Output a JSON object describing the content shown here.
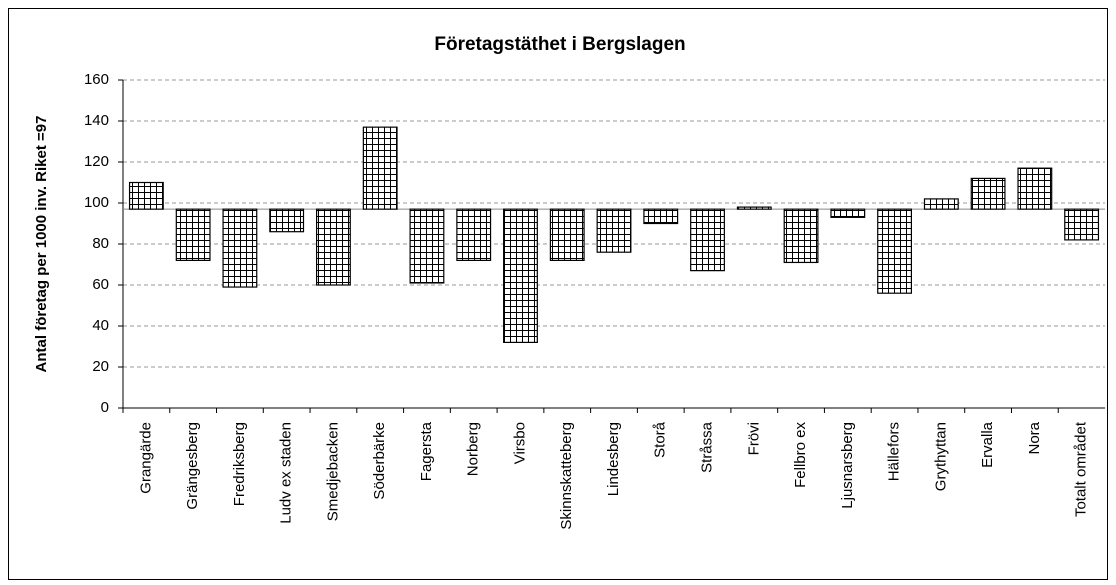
{
  "chart_data": {
    "type": "bar",
    "title": "Företagstäthet i Bergslagen",
    "y_label": "Antal företag per 1000 inv. Riket =97",
    "baseline": 97,
    "categories": [
      "Grangärde",
      "Grängesberg",
      "Fredriksberg",
      "Ludv ex staden",
      "Smedjebacken",
      "Söderbärke",
      "Fagersta",
      "Norberg",
      "Virsbo",
      "Skinnskatteberg",
      "Lindesberg",
      "Storå",
      "Stråssa",
      "Frövi",
      "Fellbro ex",
      "Ljusnarsberg",
      "Hällefors",
      "Grythyttan",
      "Ervalla",
      "Nora",
      "Totalt området"
    ],
    "values": [
      110,
      72,
      59,
      86,
      60,
      137,
      61,
      72,
      32,
      72,
      76,
      90,
      67,
      98,
      71,
      93,
      56,
      102,
      112,
      117,
      82
    ],
    "color": "#000000",
    "ylim": [
      0,
      160
    ],
    "yticks": [
      0,
      20,
      40,
      60,
      80,
      100,
      120,
      140,
      160
    ],
    "grid": true
  }
}
